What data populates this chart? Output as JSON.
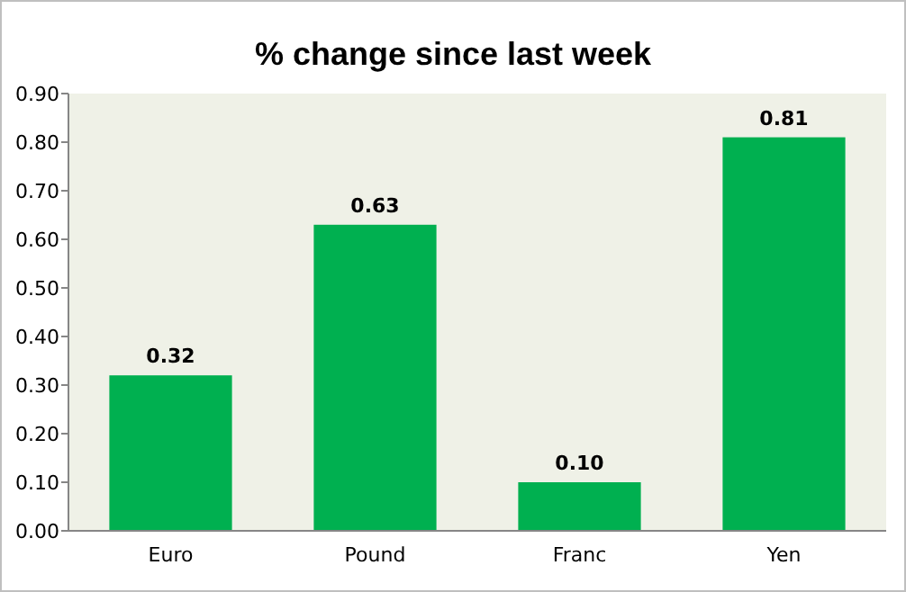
{
  "chart_data": {
    "type": "bar",
    "title": "% change since last week",
    "categories": [
      "Euro",
      "Pound",
      "Franc",
      "Yen"
    ],
    "values": [
      0.32,
      0.63,
      0.1,
      0.81
    ],
    "value_labels": [
      "0.32",
      "0.63",
      "0.10",
      "0.81"
    ],
    "color": "#00b050",
    "ylim": [
      0,
      0.9
    ],
    "yticks": [
      {
        "value": 0,
        "label": "0.00"
      },
      {
        "value": 0.1,
        "label": "0.10"
      },
      {
        "value": 0.2,
        "label": "0.20"
      },
      {
        "value": 0.3,
        "label": "0.30"
      },
      {
        "value": 0.4,
        "label": "0.40"
      },
      {
        "value": 0.5,
        "label": "0.50"
      },
      {
        "value": 0.6,
        "label": "0.60"
      },
      {
        "value": 0.7,
        "label": "0.70"
      },
      {
        "value": 0.8,
        "label": "0.80"
      },
      {
        "value": 0.9,
        "label": "0.90"
      }
    ],
    "grid": false
  }
}
